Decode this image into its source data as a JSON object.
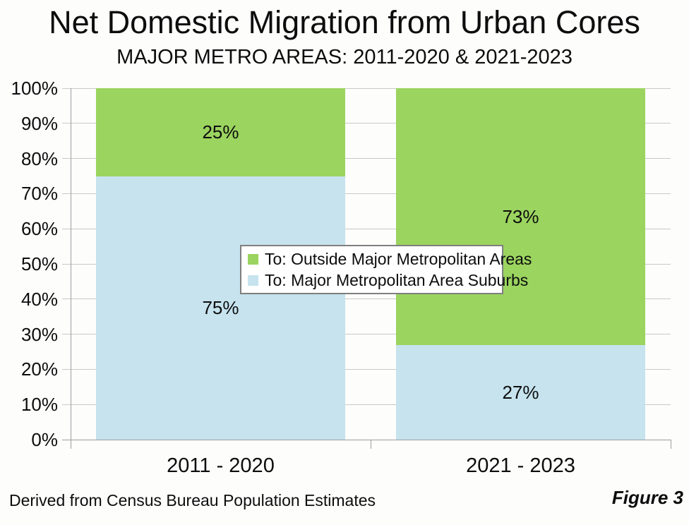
{
  "chart_data": {
    "type": "bar",
    "stacked": true,
    "title": "Net Domestic Migration from Urban Cores",
    "subtitle": "MAJOR METRO AREAS: 2011-2020 & 2021-2023",
    "categories": [
      "2011 - 2020",
      "2021 - 2023"
    ],
    "series": [
      {
        "name": "To: Outside Major Metropolitan Areas",
        "color": "#9BD45F",
        "values": [
          25,
          73
        ],
        "labels": [
          "25%",
          "73%"
        ]
      },
      {
        "name": "To: Major Metropolitan Area Suburbs",
        "color": "#C6E3EE",
        "values": [
          75,
          27
        ],
        "labels": [
          "75%",
          "27%"
        ]
      }
    ],
    "ylim": [
      0,
      100
    ],
    "ytick_step": 10,
    "ytick_labels": [
      "0%",
      "10%",
      "20%",
      "30%",
      "40%",
      "50%",
      "60%",
      "70%",
      "80%",
      "90%",
      "100%"
    ],
    "grid": true,
    "legend_position": "center-overlay",
    "footer_left": "Derived from Census Bureau Population Estimates",
    "footer_right": "Figure 3",
    "colors": {
      "grid": "#c9c9c9",
      "axis": "#9e9e9e",
      "text": "#0d0d0d",
      "background": "#fdfdfc",
      "legend_border": "#7f7f7f",
      "legend_background": "#ffffff"
    }
  }
}
